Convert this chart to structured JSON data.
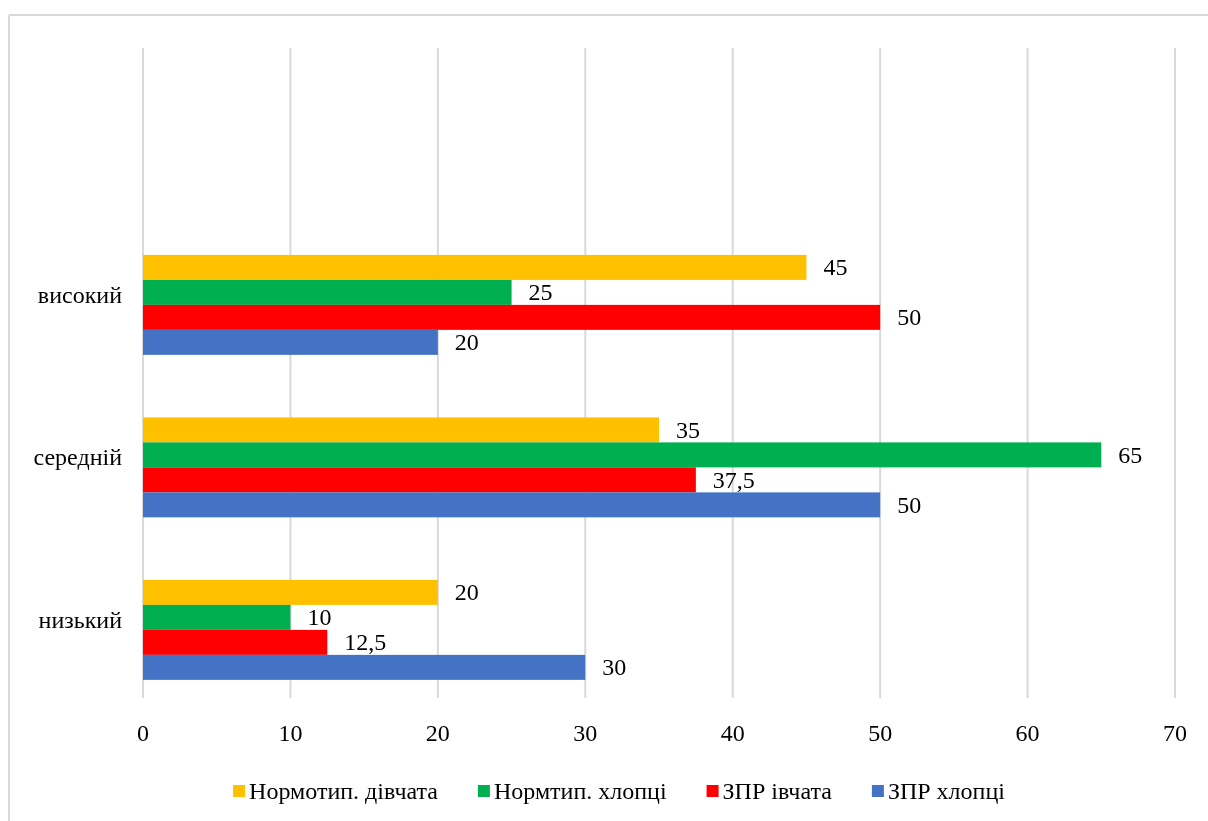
{
  "chart_data": {
    "type": "bar",
    "orientation": "horizontal",
    "categories": [
      null,
      "високий",
      "середній",
      "низький"
    ],
    "series": [
      {
        "name": "Нормотип. дівчата",
        "color": "#ffc000",
        "values": [
          null,
          45,
          35,
          20
        ],
        "value_labels": [
          null,
          "45",
          "35",
          "20"
        ]
      },
      {
        "name": "Нормтип. хлопці",
        "color": "#00b050",
        "values": [
          null,
          25,
          65,
          10
        ],
        "value_labels": [
          null,
          "25",
          "65",
          "10"
        ]
      },
      {
        "name": "ЗПР івчата",
        "color": "#ff0000",
        "values": [
          null,
          50,
          37.5,
          12.5
        ],
        "value_labels": [
          null,
          "50",
          "37,5",
          "12,5"
        ]
      },
      {
        "name": "ЗПР хлопці",
        "color": "#4472c4",
        "values": [
          null,
          20,
          50,
          30
        ],
        "value_labels": [
          null,
          "20",
          "50",
          "30"
        ]
      }
    ],
    "xlim": [
      0,
      70
    ],
    "xticks": [
      0,
      10,
      20,
      30,
      40,
      50,
      60,
      70
    ],
    "grid": "x",
    "legend": "bottom"
  }
}
